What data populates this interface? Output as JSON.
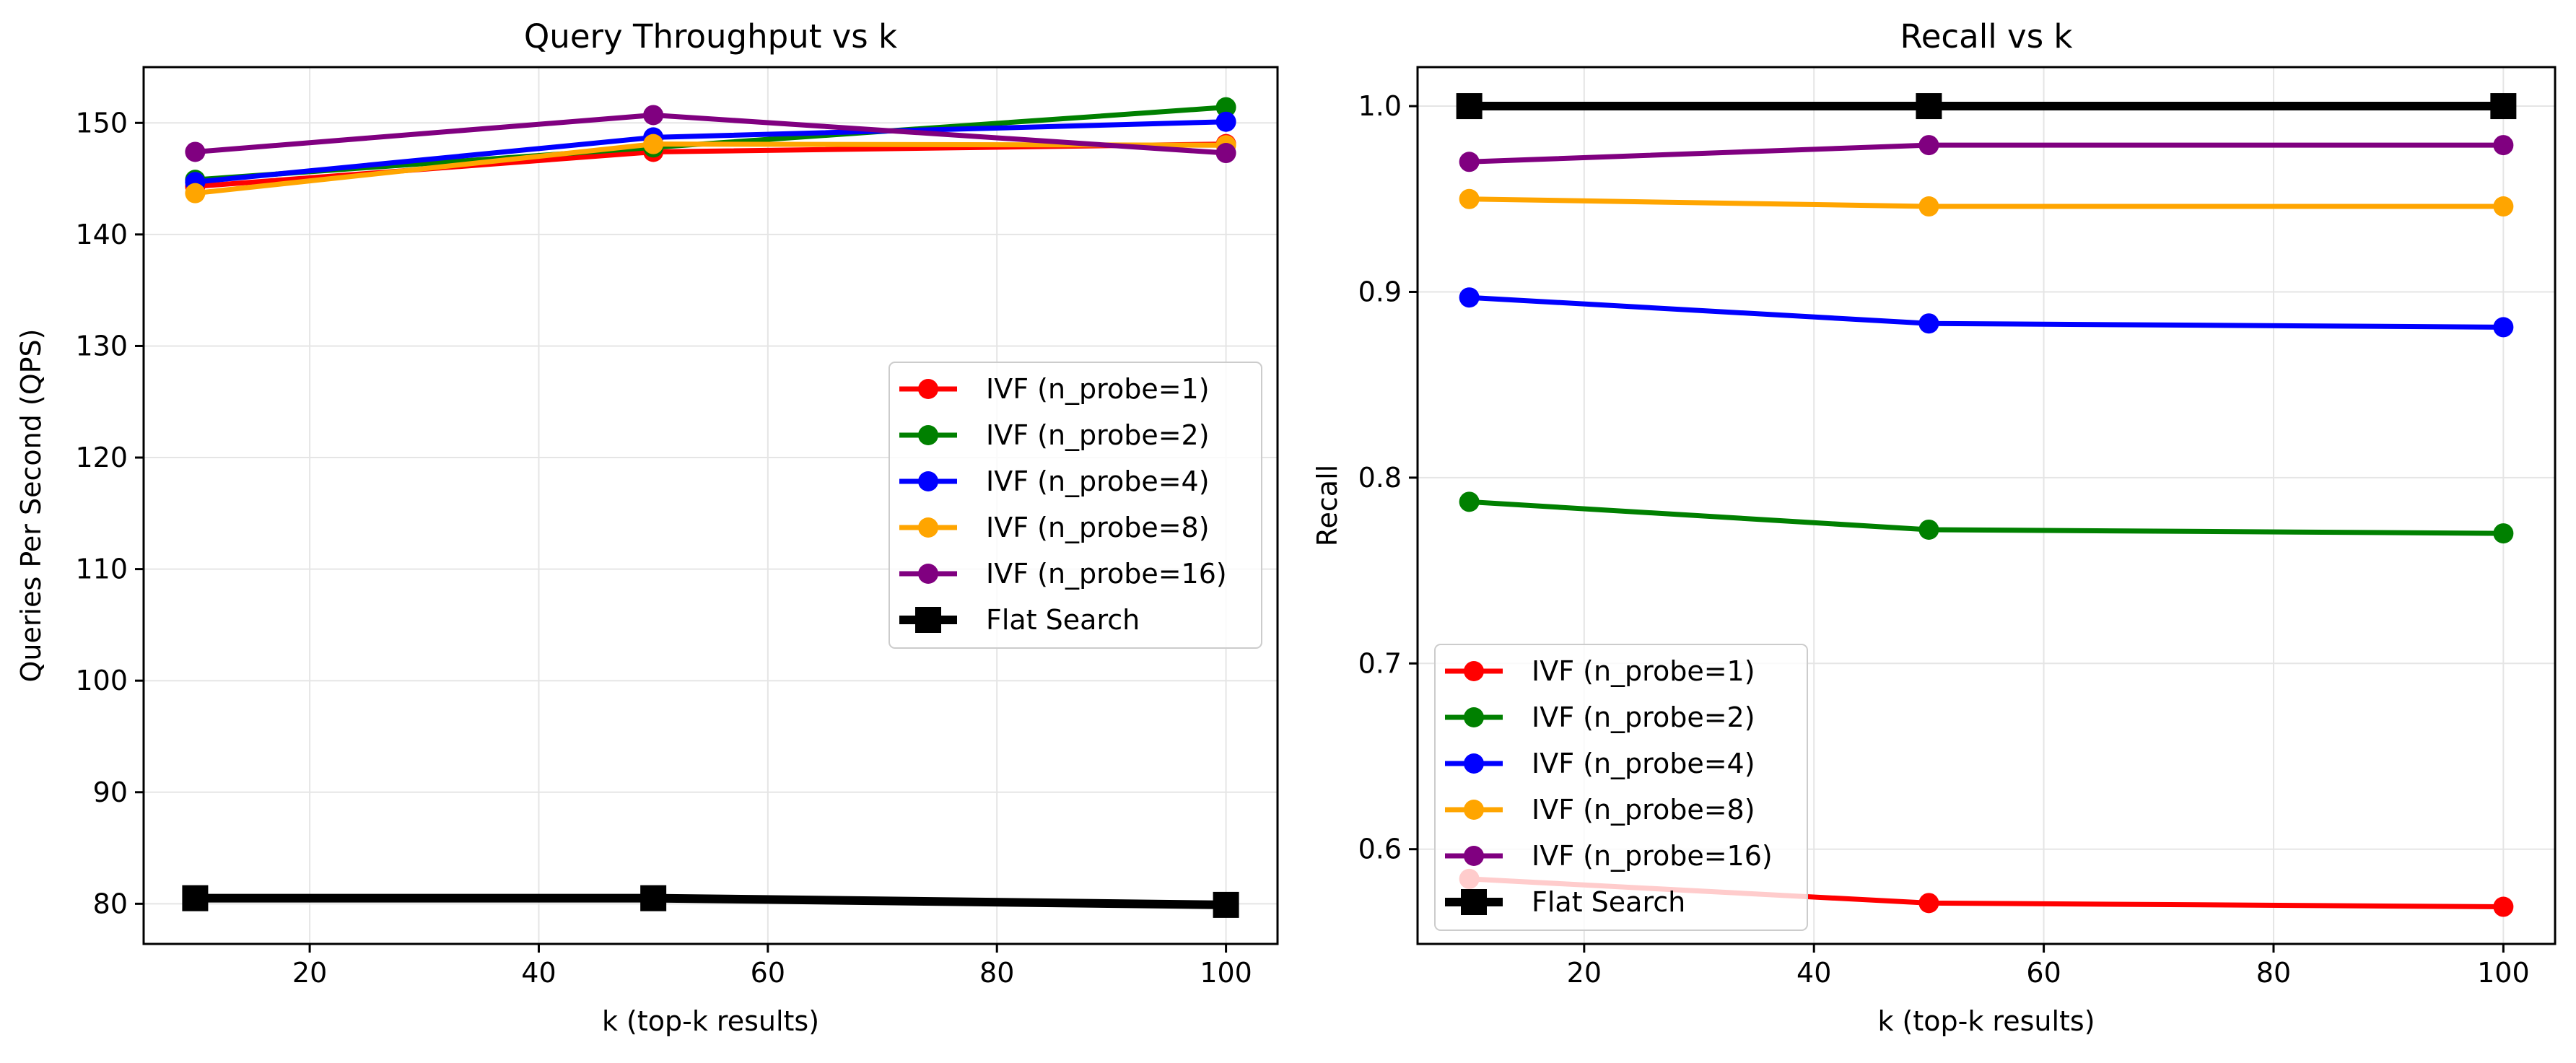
{
  "chart_data": [
    {
      "type": "line",
      "title": "Query Throughput vs k",
      "xlabel": "k (top-k results)",
      "ylabel": "Queries Per Second (QPS)",
      "xlim": [
        5.5,
        104.5
      ],
      "ylim": [
        76.4,
        155.0
      ],
      "xticks": [
        20,
        40,
        60,
        80,
        100
      ],
      "yticks": [
        80,
        90,
        100,
        110,
        120,
        130,
        140,
        150
      ],
      "grid": true,
      "legend_position": "center-right",
      "x": [
        10,
        50,
        100
      ],
      "series": [
        {
          "name": "IVF (n_probe=1)",
          "color": "#ff0000",
          "marker": "circle",
          "values": [
            144.3,
            147.4,
            148.1
          ]
        },
        {
          "name": "IVF (n_probe=2)",
          "color": "#008000",
          "marker": "circle",
          "values": [
            144.9,
            147.8,
            151.4
          ]
        },
        {
          "name": "IVF (n_probe=4)",
          "color": "#0000ff",
          "marker": "circle",
          "values": [
            144.7,
            148.7,
            150.1
          ]
        },
        {
          "name": "IVF (n_probe=8)",
          "color": "#ffa500",
          "marker": "circle",
          "values": [
            143.7,
            148.1,
            148.0
          ]
        },
        {
          "name": "IVF (n_probe=16)",
          "color": "#800080",
          "marker": "circle",
          "values": [
            147.4,
            150.7,
            147.3
          ]
        },
        {
          "name": "Flat Search",
          "color": "#000000",
          "marker": "square",
          "values": [
            80.5,
            80.5,
            79.9
          ]
        }
      ]
    },
    {
      "type": "line",
      "title": "Recall vs k",
      "xlabel": "k (top-k results)",
      "ylabel": "Recall",
      "xlim": [
        5.5,
        104.5
      ],
      "ylim": [
        0.549,
        1.021
      ],
      "xticks": [
        20,
        40,
        60,
        80,
        100
      ],
      "yticks": [
        0.6,
        0.7,
        0.8,
        0.9,
        1.0
      ],
      "ytick_labels": [
        "0.6",
        "0.7",
        "0.8",
        "0.9",
        "1.0"
      ],
      "grid": true,
      "legend_position": "lower-left",
      "x": [
        10,
        50,
        100
      ],
      "series": [
        {
          "name": "IVF (n_probe=1)",
          "color": "#ff0000",
          "marker": "circle",
          "values": [
            0.584,
            0.571,
            0.569
          ]
        },
        {
          "name": "IVF (n_probe=2)",
          "color": "#008000",
          "marker": "circle",
          "values": [
            0.787,
            0.772,
            0.77
          ]
        },
        {
          "name": "IVF (n_probe=4)",
          "color": "#0000ff",
          "marker": "circle",
          "values": [
            0.897,
            0.883,
            0.881
          ]
        },
        {
          "name": "IVF (n_probe=8)",
          "color": "#ffa500",
          "marker": "circle",
          "values": [
            0.95,
            0.946,
            0.946
          ]
        },
        {
          "name": "IVF (n_probe=16)",
          "color": "#800080",
          "marker": "circle",
          "values": [
            0.97,
            0.979,
            0.979
          ]
        },
        {
          "name": "Flat Search",
          "color": "#000000",
          "marker": "square",
          "values": [
            1.0,
            1.0,
            1.0
          ]
        }
      ]
    }
  ]
}
